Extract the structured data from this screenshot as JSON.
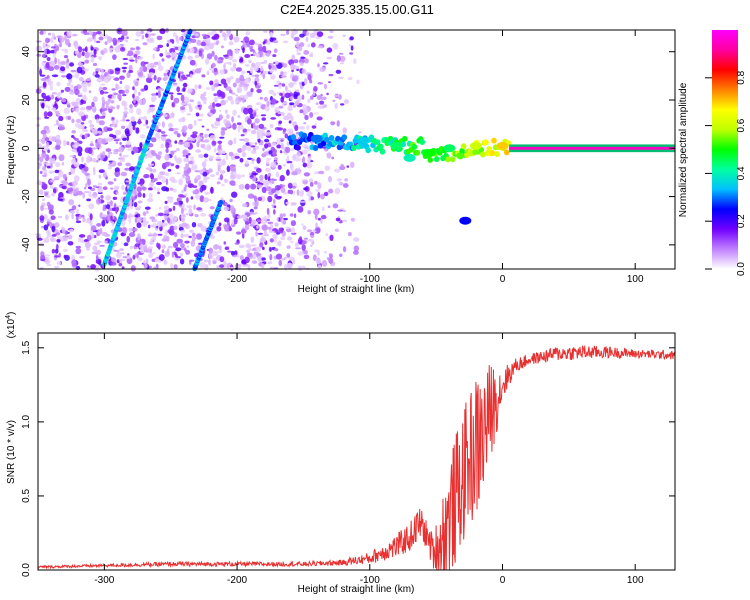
{
  "figure": {
    "title": "C2E4.2025.335.15.00.G11"
  },
  "chart_data": [
    {
      "type": "heatmap",
      "xlabel": "Height of straight line (km)",
      "ylabel": "Frequency (Hz)",
      "xlim": [
        -350,
        130
      ],
      "ylim": [
        -50,
        49
      ],
      "xticks": [
        -300,
        -200,
        -100,
        0,
        100
      ],
      "yticks": [
        -40,
        -20,
        0,
        20,
        40
      ],
      "grid": false,
      "colorbar": {
        "label": "Normalized spectral amplitude",
        "range": [
          0,
          1
        ],
        "ticks": [
          "0.0",
          "0.2",
          "0.4",
          "0.6",
          "0.8"
        ],
        "colors": [
          "#ffffff",
          "#c080ff",
          "#7000ff",
          "#0000ff",
          "#00c0ff",
          "#00ffa0",
          "#00ff00",
          "#c0ff00",
          "#ffff00",
          "#ff8000",
          "#ff0000",
          "#ff00a0",
          "#ff00ff"
        ]
      },
      "features": {
        "noise_region_x": [
          -350,
          -105
        ],
        "tone_band": {
          "x": [
            5,
            130
          ],
          "freq": 0,
          "amplitude": 0.95
        },
        "descending_lines": [
          {
            "x": [
              -300,
              -268
            ],
            "freq": [
              -48,
              2
            ],
            "amplitude": 0.35
          },
          {
            "x": [
              -268,
              -235
            ],
            "freq": [
              2,
              49
            ],
            "amplitude": 0.3
          },
          {
            "x": [
              -232,
              -212
            ],
            "freq": [
              -50,
              -22
            ],
            "amplitude": 0.3
          }
        ],
        "transition_blobs": [
          {
            "x": -140,
            "freq": 4,
            "amplitude": 0.3
          },
          {
            "x": -105,
            "freq": 3,
            "amplitude": 0.35
          },
          {
            "x": -80,
            "freq": 1,
            "amplitude": 0.45
          },
          {
            "x": -70,
            "freq": -4,
            "amplitude": 0.4
          },
          {
            "x": -55,
            "freq": -2,
            "amplitude": 0.5
          },
          {
            "x": -40,
            "freq": 0,
            "amplitude": 0.45
          },
          {
            "x": -20,
            "freq": 1,
            "amplitude": 0.6
          },
          {
            "x": 0,
            "freq": 1,
            "amplitude": 0.7
          },
          {
            "x": -28,
            "freq": -30,
            "amplitude": 0.25
          }
        ]
      }
    },
    {
      "type": "line",
      "xlabel": "Height of straight line (km)",
      "ylabel": "SNR (10 * v/v)",
      "multiplier": "(x10",
      "multiplier_exp": "4",
      "multiplier_close": ")",
      "xlim": [
        -350,
        130
      ],
      "ylim": [
        0,
        1.6
      ],
      "xticks": [
        -300,
        -200,
        -100,
        0,
        100
      ],
      "yticks": [
        "0.0",
        "0.5",
        "1.0",
        "1.5"
      ],
      "grid": false,
      "color": "#e83030",
      "series": [
        {
          "x": [
            -350,
            -300,
            -250,
            -200,
            -150,
            -120,
            -100,
            -90,
            -80,
            -70,
            -62,
            -58,
            -52,
            -46,
            -40,
            -35,
            -30,
            -25,
            -20,
            -15,
            -10,
            -5,
            0,
            5,
            10,
            20,
            30,
            40,
            60,
            80,
            100,
            130
          ],
          "values": [
            0.02,
            0.03,
            0.04,
            0.04,
            0.04,
            0.05,
            0.08,
            0.12,
            0.16,
            0.22,
            0.32,
            0.25,
            0.12,
            0.2,
            0.35,
            0.48,
            0.62,
            0.75,
            0.82,
            0.9,
            1.05,
            1.15,
            1.25,
            1.32,
            1.38,
            1.42,
            1.44,
            1.46,
            1.47,
            1.47,
            1.46,
            1.45
          ],
          "noise": [
            0.008,
            0.01,
            0.015,
            0.015,
            0.015,
            0.02,
            0.04,
            0.06,
            0.08,
            0.1,
            0.12,
            0.1,
            0.12,
            0.3,
            0.4,
            0.45,
            0.45,
            0.45,
            0.5,
            0.45,
            0.35,
            0.25,
            0.12,
            0.08,
            0.05,
            0.04,
            0.04,
            0.05,
            0.05,
            0.04,
            0.03,
            0.03
          ]
        }
      ]
    }
  ]
}
